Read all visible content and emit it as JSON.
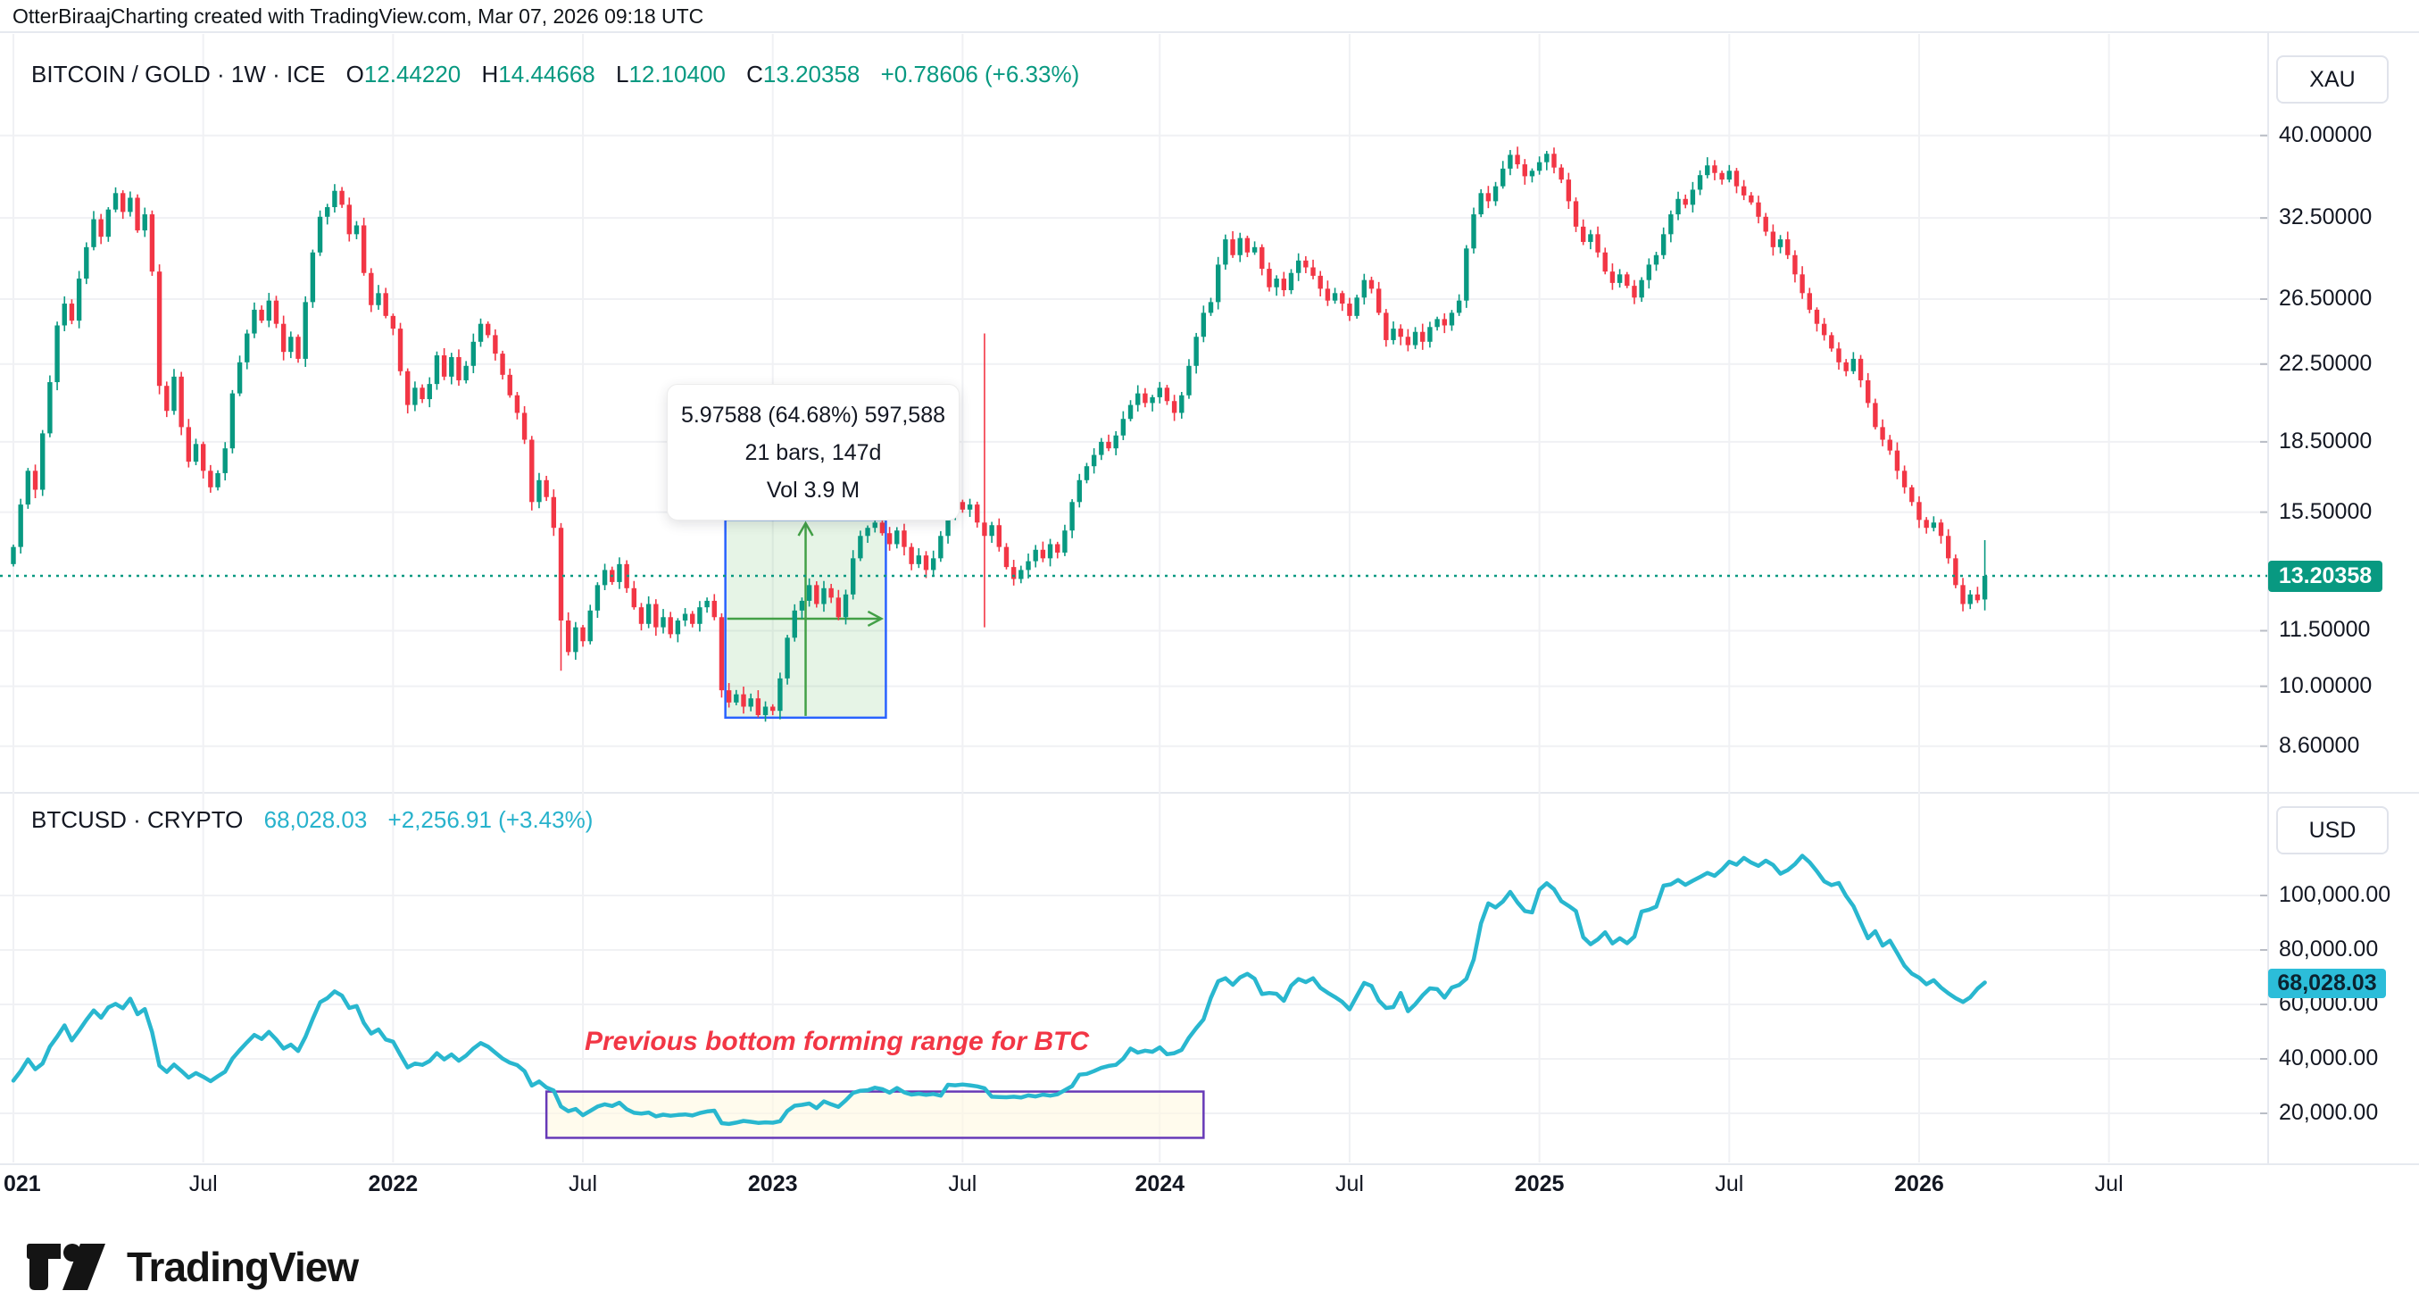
{
  "header": {
    "credit": "OtterBiraajCharting created with TradingView.com, Mar 07, 2026 09:18 UTC"
  },
  "footer": {
    "brand": "TradingView"
  },
  "colors": {
    "up": "#089981",
    "down": "#F23645",
    "line": "#29b7cf",
    "grid": "#f0f1f4",
    "text": "#131722",
    "axis_border": "#e6e9ef",
    "tick": "#b9bdc5",
    "measure_border": "#2962FF",
    "measure_fill": "rgba(76,175,80,0.14)",
    "measure_arrow": "#43A047",
    "range_border": "#673AB7",
    "range_fill": "rgba(255,248,225,0.6)",
    "badge_main_bg": "#089981",
    "badge_sub_bg": "#2cbdd9",
    "annotation": "#F23645"
  },
  "chart_data": [
    {
      "type": "candlestick",
      "symbol": "BITCOIN / GOLD",
      "interval": "1W",
      "exchange": "ICE",
      "scale": "log",
      "grid": true,
      "ylim": [
        8.0,
        44.0
      ],
      "axis_currency": "XAU",
      "legend": {
        "title": "BITCOIN / GOLD · 1W · ICE",
        "o_label": "O",
        "o": "12.44220",
        "h_label": "H",
        "h": "14.44668",
        "l_label": "L",
        "l": "12.10400",
        "c_label": "C",
        "c": "13.20358",
        "change": "+0.78606 (+6.33%)"
      },
      "current_price": 13.20358,
      "last_price": {
        "label": "13.20358",
        "value": 13.20358
      },
      "y_ticks": [
        {
          "label": "40.00000",
          "value": 40.0
        },
        {
          "label": "32.50000",
          "value": 32.5
        },
        {
          "label": "26.50000",
          "value": 26.5
        },
        {
          "label": "22.50000",
          "value": 22.5
        },
        {
          "label": "18.50000",
          "value": 18.5
        },
        {
          "label": "15.50000",
          "value": 15.5
        },
        {
          "label": "11.50000",
          "value": 11.5
        },
        {
          "label": "10.00000",
          "value": 10.0
        },
        {
          "label": "8.60000",
          "value": 8.6
        }
      ],
      "x_ticks": [
        {
          "label": "021",
          "week": 0,
          "bold": true,
          "align": "left"
        },
        {
          "label": "Jul",
          "week": 26
        },
        {
          "label": "2022",
          "week": 52,
          "bold": true
        },
        {
          "label": "Jul",
          "week": 78
        },
        {
          "label": "2023",
          "week": 104,
          "bold": true
        },
        {
          "label": "Jul",
          "week": 130
        },
        {
          "label": "2024",
          "week": 157,
          "bold": true
        },
        {
          "label": "Jul",
          "week": 183
        },
        {
          "label": "2025",
          "week": 209,
          "bold": true
        },
        {
          "label": "Jul",
          "week": 235
        },
        {
          "label": "2026",
          "week": 261,
          "bold": true
        },
        {
          "label": "Jul",
          "week": 287
        }
      ],
      "x_start": "2021-01-04",
      "weekly_closes": [
        14.2,
        15.8,
        17.2,
        16.4,
        18.9,
        21.5,
        24.8,
        26.2,
        25.1,
        27.9,
        30.2,
        32.4,
        31.0,
        33.2,
        34.6,
        33.0,
        34.2,
        31.5,
        32.8,
        28.4,
        21.3,
        20.0,
        21.8,
        19.2,
        17.6,
        18.4,
        17.2,
        16.5,
        17.1,
        18.2,
        20.9,
        22.6,
        24.3,
        25.8,
        25.1,
        26.4,
        24.9,
        23.2,
        24.1,
        22.8,
        26.3,
        29.8,
        32.6,
        33.4,
        34.8,
        33.6,
        31.2,
        31.9,
        28.3,
        26.1,
        26.9,
        25.4,
        24.6,
        22.1,
        20.3,
        21.2,
        20.6,
        21.4,
        23.0,
        21.8,
        22.9,
        21.6,
        22.4,
        23.8,
        24.9,
        24.2,
        23.1,
        21.9,
        20.8,
        19.9,
        18.6,
        15.9,
        16.8,
        16.1,
        14.9,
        11.8,
        10.9,
        11.6,
        11.2,
        12.1,
        12.9,
        13.4,
        13.0,
        13.6,
        12.8,
        12.2,
        11.7,
        12.3,
        11.6,
        11.9,
        11.4,
        11.8,
        12.0,
        11.7,
        12.2,
        12.4,
        11.9,
        9.9,
        9.6,
        9.8,
        9.5,
        9.7,
        9.3,
        9.5,
        9.4,
        10.2,
        11.3,
        12.1,
        12.4,
        12.9,
        12.3,
        12.8,
        12.5,
        11.9,
        12.6,
        13.8,
        14.6,
        14.9,
        15.1,
        14.7,
        14.3,
        14.8,
        14.2,
        13.6,
        13.9,
        13.4,
        13.8,
        14.6,
        15.4,
        15.9,
        15.6,
        15.8,
        15.1,
        14.6,
        15.0,
        14.2,
        13.5,
        13.1,
        13.4,
        13.7,
        14.1,
        13.8,
        14.3,
        14.0,
        14.8,
        15.9,
        16.8,
        17.4,
        17.9,
        18.5,
        18.2,
        18.8,
        19.6,
        20.3,
        20.9,
        20.4,
        20.7,
        21.2,
        20.5,
        19.9,
        20.8,
        22.4,
        24.1,
        25.6,
        26.3,
        28.9,
        30.8,
        29.6,
        30.9,
        29.8,
        30.2,
        28.6,
        27.3,
        27.9,
        27.1,
        28.3,
        29.2,
        28.7,
        28.1,
        27.2,
        26.4,
        26.9,
        26.2,
        25.4,
        26.6,
        27.8,
        27.2,
        25.6,
        23.9,
        24.6,
        24.1,
        23.6,
        24.4,
        23.8,
        24.7,
        25.2,
        24.8,
        25.6,
        26.4,
        30.1,
        32.8,
        34.6,
        33.9,
        35.2,
        36.8,
        38.1,
        37.2,
        36.1,
        36.6,
        37.4,
        38.2,
        36.9,
        35.8,
        33.9,
        31.8,
        30.6,
        31.2,
        29.8,
        28.4,
        27.6,
        28.2,
        27.4,
        26.6,
        27.8,
        28.9,
        29.6,
        31.2,
        32.8,
        34.1,
        33.6,
        34.9,
        36.2,
        37.1,
        36.4,
        35.8,
        36.6,
        35.2,
        34.4,
        33.8,
        32.6,
        31.4,
        30.2,
        30.8,
        29.6,
        28.2,
        26.9,
        25.8,
        24.9,
        24.2,
        23.4,
        22.6,
        22.1,
        22.8,
        21.6,
        20.4,
        19.2,
        18.6,
        18.1,
        17.2,
        16.5,
        15.9,
        15.2,
        14.9,
        15.1,
        14.6,
        13.8,
        12.9,
        12.3,
        12.6,
        12.4175,
        13.20358
      ],
      "bar_overrides": {
        "75": {
          "l": 10.4
        },
        "133": {
          "h": 24.3,
          "l": 11.6
        },
        "270": {
          "o": 12.4422,
          "h": 14.44668,
          "l": 12.104
        }
      },
      "measurement": {
        "week_from": 98,
        "week_to": 119,
        "price_from": 9.24,
        "price_to": 15.21,
        "bars": 21,
        "days": 147
      },
      "measure_tooltip": {
        "line1": "5.97588 (64.68%) 597,588",
        "line2": "21 bars, 147d",
        "line3": "Vol 3.9 M"
      }
    },
    {
      "type": "line",
      "symbol": "BTCUSD",
      "exchange": "CRYPTO",
      "scale": "linear",
      "grid": true,
      "ylim": [
        10000,
        125000
      ],
      "axis_currency": "USD",
      "legend": {
        "title": "BTCUSD · CRYPTO",
        "value": "68,028.03",
        "change": "+2,256.91 (+3.43%)"
      },
      "last_price": {
        "label": "68,028.03",
        "value": 68028.03
      },
      "y_ticks": [
        {
          "label": "100,000.00",
          "value": 100000
        },
        {
          "label": "80,000.00",
          "value": 80000
        },
        {
          "label": "60,000.00",
          "value": 60000
        },
        {
          "label": "40,000.00",
          "value": 40000
        },
        {
          "label": "20,000.00",
          "value": 20000
        }
      ],
      "weekly_closes": [
        32000,
        35500,
        39800,
        36200,
        38300,
        44500,
        48200,
        52300,
        46800,
        50400,
        54300,
        57800,
        55100,
        58900,
        60200,
        58600,
        62100,
        56400,
        58300,
        49800,
        37500,
        35200,
        37900,
        35600,
        33100,
        34800,
        33400,
        31800,
        33600,
        35300,
        40100,
        43200,
        46100,
        48800,
        47300,
        49900,
        47100,
        43800,
        45200,
        42900,
        48100,
        54700,
        60800,
        62300,
        64800,
        63200,
        58700,
        59400,
        53200,
        49300,
        50800,
        47100,
        46300,
        41500,
        36900,
        38300,
        37800,
        39200,
        42100,
        39800,
        41600,
        39300,
        41200,
        43800,
        45800,
        44500,
        42300,
        40100,
        38600,
        37700,
        35500,
        30200,
        31700,
        29500,
        28400,
        22500,
        20800,
        21600,
        19300,
        20900,
        22500,
        23300,
        22700,
        23900,
        21500,
        20200,
        19900,
        20300,
        18900,
        19500,
        19100,
        19400,
        19600,
        19200,
        20100,
        20700,
        21000,
        16400,
        16100,
        16600,
        17200,
        16900,
        16500,
        16700,
        16550,
        17100,
        20900,
        22800,
        23100,
        23600,
        21900,
        24400,
        23300,
        22400,
        24800,
        27500,
        28300,
        28500,
        29400,
        28900,
        27600,
        29300,
        27700,
        26900,
        27200,
        26800,
        27100,
        26500,
        30500,
        30300,
        30600,
        30300,
        29900,
        29200,
        26100,
        26000,
        25900,
        26100,
        25800,
        26600,
        26200,
        26900,
        26500,
        27000,
        28500,
        30000,
        34200,
        34500,
        35500,
        36700,
        37400,
        37800,
        40100,
        43800,
        42300,
        43000,
        42600,
        44200,
        41700,
        42100,
        43300,
        47800,
        51300,
        54500,
        62400,
        68500,
        69600,
        67200,
        69900,
        71200,
        69400,
        63800,
        64200,
        63900,
        61300,
        66900,
        69300,
        68200,
        69600,
        66100,
        64300,
        62700,
        60900,
        58200,
        63100,
        67900,
        66800,
        61400,
        58700,
        59000,
        64200,
        57500,
        60100,
        63300,
        65900,
        65600,
        62500,
        66200,
        67100,
        69400,
        76500,
        89800,
        97100,
        95600,
        97800,
        101300,
        97400,
        94300,
        93800,
        102100,
        104500,
        102300,
        97900,
        96200,
        94300,
        84700,
        82100,
        83900,
        86500,
        82400,
        84300,
        82500,
        84900,
        94100,
        94800,
        95900,
        103600,
        104100,
        105700,
        103900,
        105400,
        106800,
        108300,
        107200,
        109500,
        112400,
        111300,
        113800,
        112100,
        110900,
        112800,
        111200,
        108000,
        109300,
        111500,
        114600,
        112200,
        108900,
        105200,
        103800,
        104600,
        99800,
        96100,
        90200,
        84300,
        86900,
        81600,
        83400,
        78900,
        74200,
        71300,
        69800,
        67400,
        68900,
        66200,
        64100,
        62300,
        60900,
        62600,
        65771,
        68028.03
      ],
      "range_box": {
        "week_from": 73,
        "week_to": 163,
        "price_top": 28000,
        "price_bottom": 11000
      },
      "annotation": {
        "text": "Previous bottom forming range for BTC"
      }
    }
  ]
}
